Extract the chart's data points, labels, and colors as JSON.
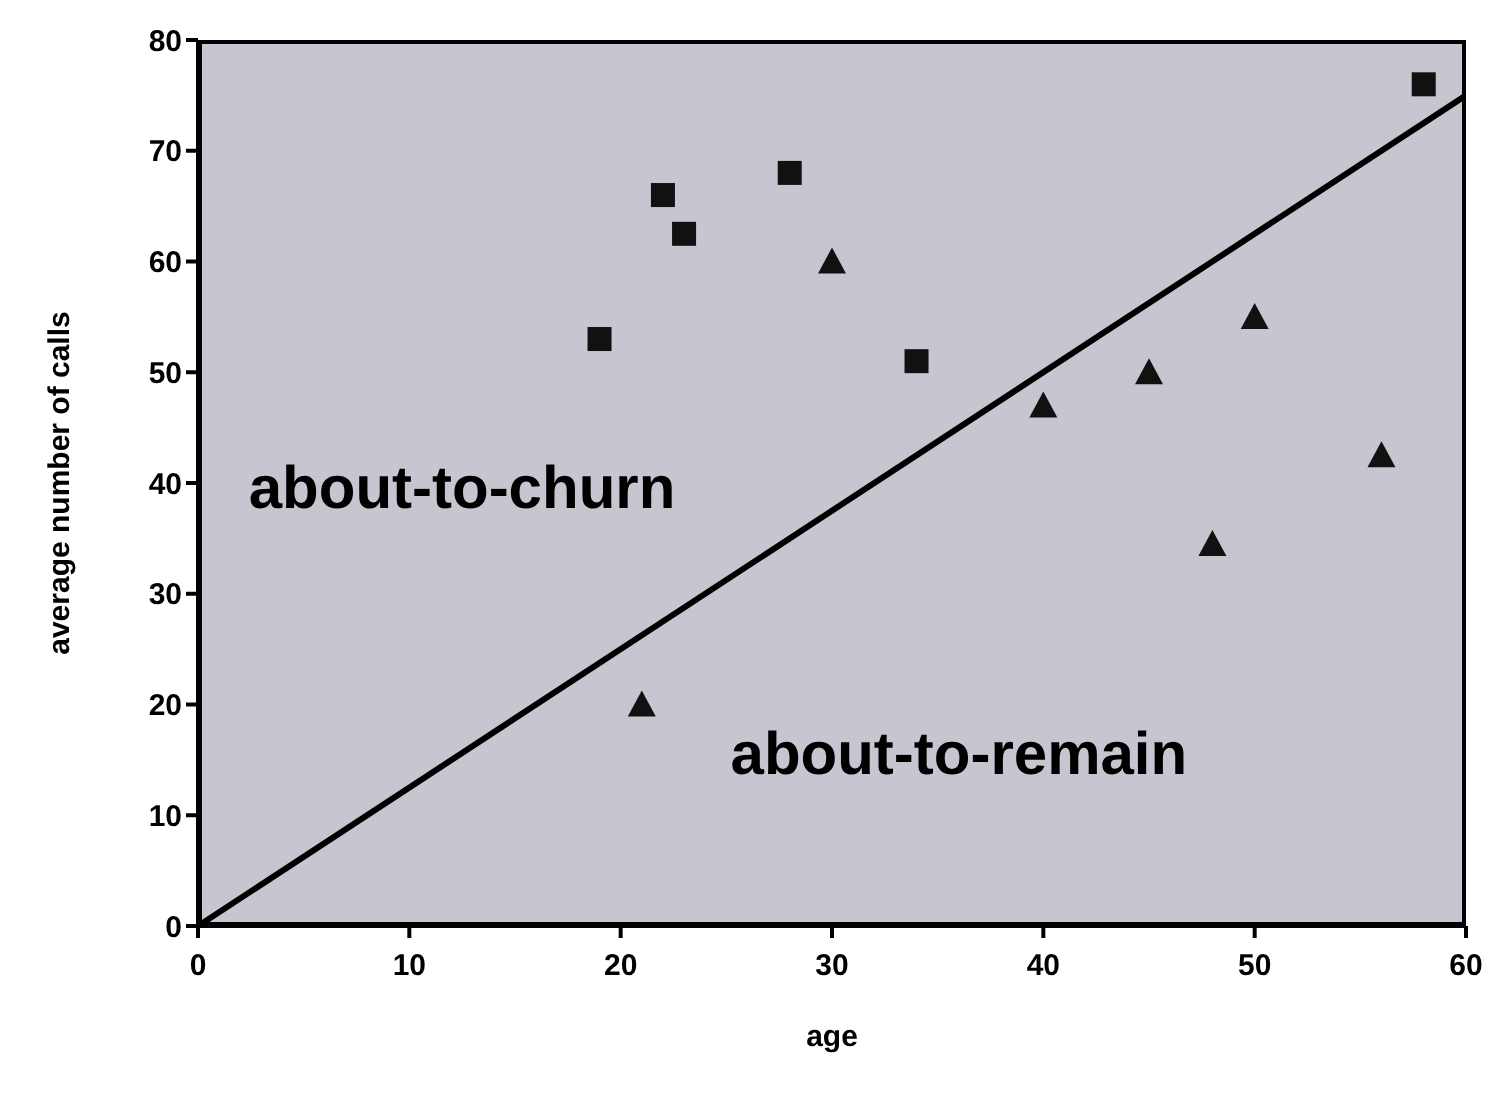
{
  "chart_data": {
    "type": "scatter",
    "xlabel": "age",
    "ylabel": "average number of calls",
    "xlim": [
      0,
      60
    ],
    "xticks": [
      0,
      10,
      20,
      30,
      40,
      50,
      60
    ],
    "ylim": [
      0,
      80
    ],
    "yticks": [
      0,
      10,
      20,
      30,
      40,
      50,
      60,
      70,
      80
    ],
    "grid": false,
    "legend": false,
    "annotations": [
      "about-to-churn",
      "about-to-remain"
    ],
    "series": [
      {
        "marker": "square",
        "color": "#111111",
        "x": [
          19,
          22,
          23,
          28,
          34,
          58
        ],
        "values": [
          53,
          66,
          62.5,
          68,
          51,
          76
        ]
      },
      {
        "marker": "triangle",
        "color": "#111111",
        "x": [
          21,
          30,
          40,
          45,
          48,
          50,
          56
        ],
        "values": [
          20,
          60,
          47,
          50,
          34.5,
          55,
          42.5
        ]
      },
      {
        "type": "line",
        "marker": "none",
        "color": "#000000",
        "x": [
          0,
          60
        ],
        "values": [
          0,
          75
        ]
      }
    ]
  }
}
